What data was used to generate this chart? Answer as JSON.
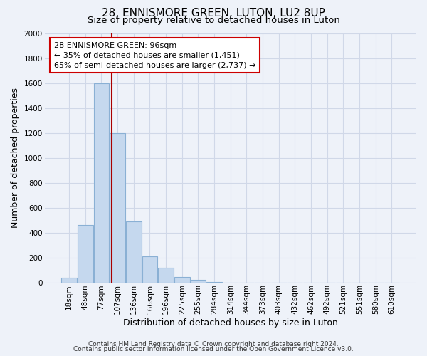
{
  "title": "28, ENNISMORE GREEN, LUTON, LU2 8UP",
  "subtitle": "Size of property relative to detached houses in Luton",
  "xlabel": "Distribution of detached houses by size in Luton",
  "ylabel": "Number of detached properties",
  "bar_labels": [
    "18sqm",
    "48sqm",
    "77sqm",
    "107sqm",
    "136sqm",
    "166sqm",
    "196sqm",
    "225sqm",
    "255sqm",
    "284sqm",
    "314sqm",
    "344sqm",
    "373sqm",
    "403sqm",
    "432sqm",
    "462sqm",
    "492sqm",
    "521sqm",
    "551sqm",
    "580sqm",
    "610sqm"
  ],
  "bar_values": [
    35,
    460,
    1600,
    1200,
    490,
    210,
    120,
    45,
    20,
    5,
    0,
    0,
    0,
    0,
    0,
    0,
    0,
    0,
    0,
    0,
    0
  ],
  "bar_color": "#c5d8ee",
  "bar_edge_color": "#8ab0d4",
  "property_line_color": "#aa0000",
  "property_line_x": 2.63,
  "annotation_text": "28 ENNISMORE GREEN: 96sqm\n← 35% of detached houses are smaller (1,451)\n65% of semi-detached houses are larger (2,737) →",
  "annotation_box_facecolor": "#ffffff",
  "annotation_box_edgecolor": "#cc0000",
  "ylim": [
    0,
    2000
  ],
  "yticks": [
    0,
    200,
    400,
    600,
    800,
    1000,
    1200,
    1400,
    1600,
    1800,
    2000
  ],
  "footer1": "Contains HM Land Registry data © Crown copyright and database right 2024.",
  "footer2": "Contains public sector information licensed under the Open Government Licence v3.0.",
  "bg_color": "#eef2f9",
  "plot_bg_color": "#eef2f9",
  "grid_color": "#d0d8e8",
  "title_fontsize": 11,
  "subtitle_fontsize": 9.5,
  "axis_label_fontsize": 9,
  "tick_fontsize": 7.5,
  "annotation_fontsize": 8,
  "footer_fontsize": 6.5
}
